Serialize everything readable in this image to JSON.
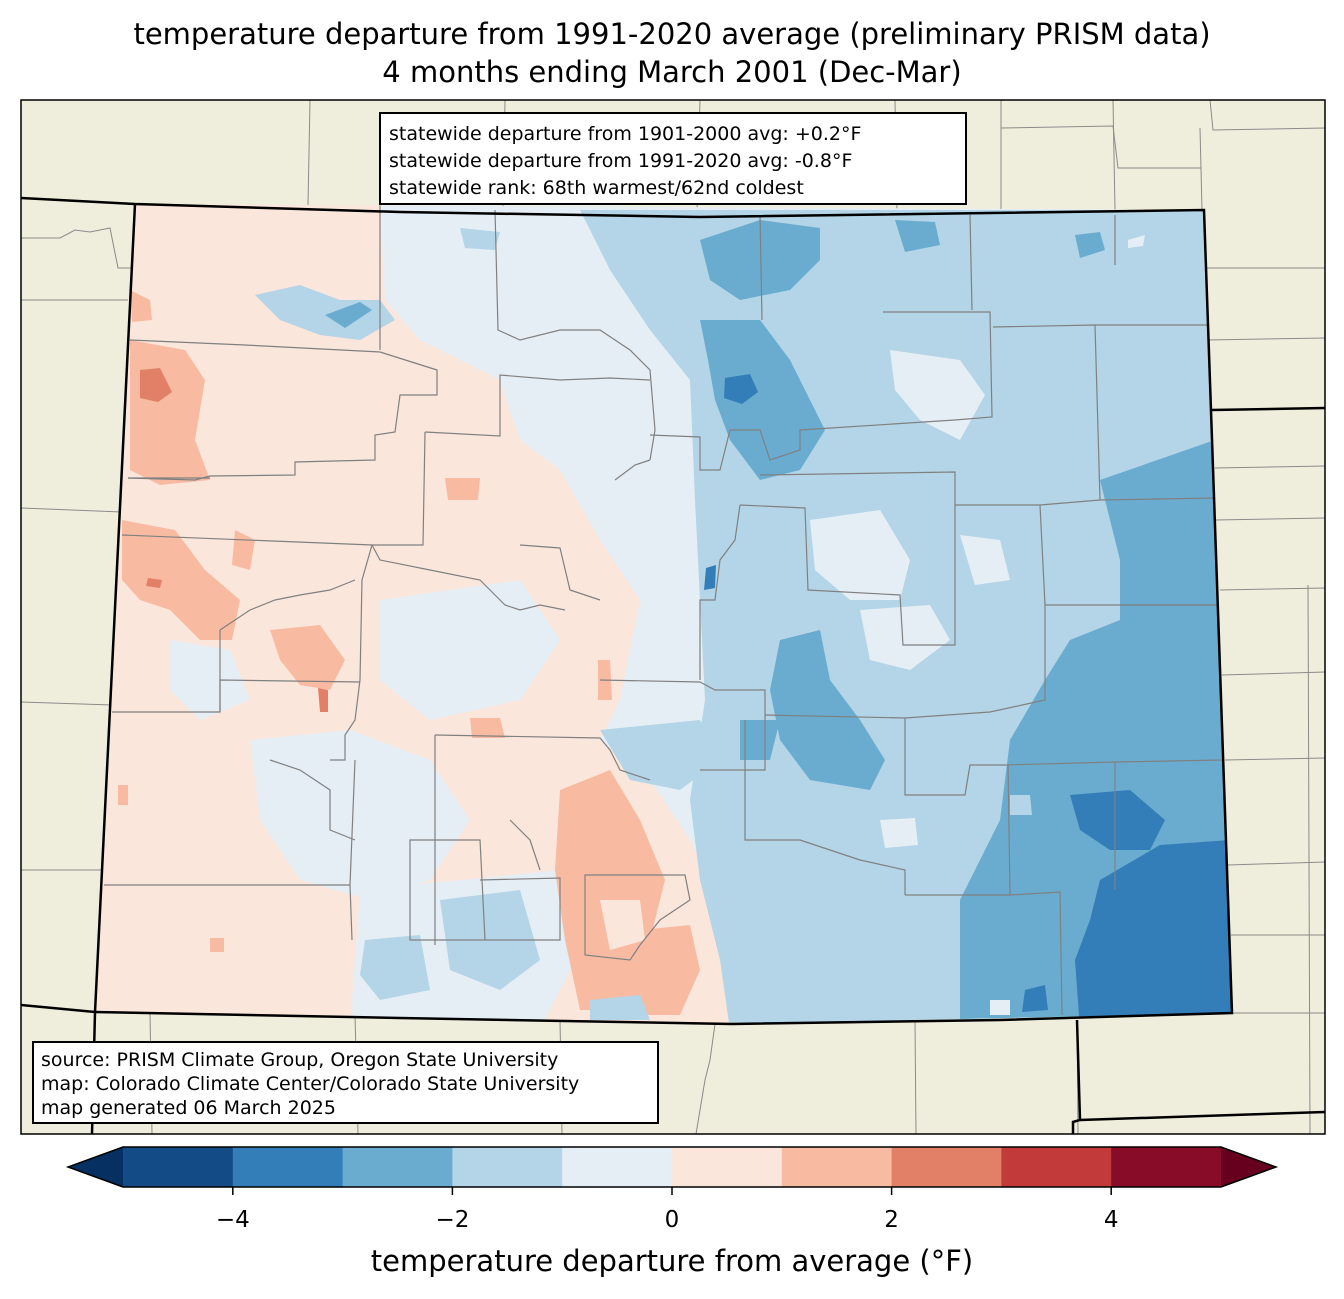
{
  "title": {
    "line1": "temperature departure from 1991-2020 average (preliminary PRISM data)",
    "line2": "4 months ending March 2001 (Dec-Mar)"
  },
  "stats": {
    "line1": "statewide departure from 1901-2000 avg: +0.2°F",
    "line2": "statewide departure from 1991-2020 avg: -0.8°F",
    "line3": "statewide rank: 68th warmest/62nd coldest"
  },
  "source": {
    "line1": "source: PRISM Climate Group, Oregon State University",
    "line2": "map: Colorado Climate Center/Colorado State University",
    "line3": "map generated 06 March 2025"
  },
  "colorbar": {
    "label": "temperature departure from average (°F)",
    "ticks": [
      "−4",
      "−2",
      "0",
      "2",
      "4"
    ],
    "tick_values": [
      -4,
      -2,
      0,
      2,
      4
    ],
    "range": [
      -5,
      5
    ],
    "bins": [
      {
        "from": -5,
        "to": -4,
        "color": "#134b86"
      },
      {
        "from": -4,
        "to": -3,
        "color": "#337eb8"
      },
      {
        "from": -3,
        "to": -2,
        "color": "#6aacd0"
      },
      {
        "from": -2,
        "to": -1,
        "color": "#b3d5e7"
      },
      {
        "from": -1,
        "to": 0,
        "color": "#e6eef5"
      },
      {
        "from": 0,
        "to": 1,
        "color": "#fbe6dc"
      },
      {
        "from": 1,
        "to": 2,
        "color": "#f8bba1"
      },
      {
        "from": 2,
        "to": 3,
        "color": "#e17f67"
      },
      {
        "from": 3,
        "to": 4,
        "color": "#c23a3a"
      },
      {
        "from": 4,
        "to": 5,
        "color": "#880b28"
      }
    ],
    "under_color": "#053061",
    "over_color": "#67001f"
  },
  "colors": {
    "land": "#efeedc",
    "county_line": "#808080",
    "state_line": "#000000"
  }
}
